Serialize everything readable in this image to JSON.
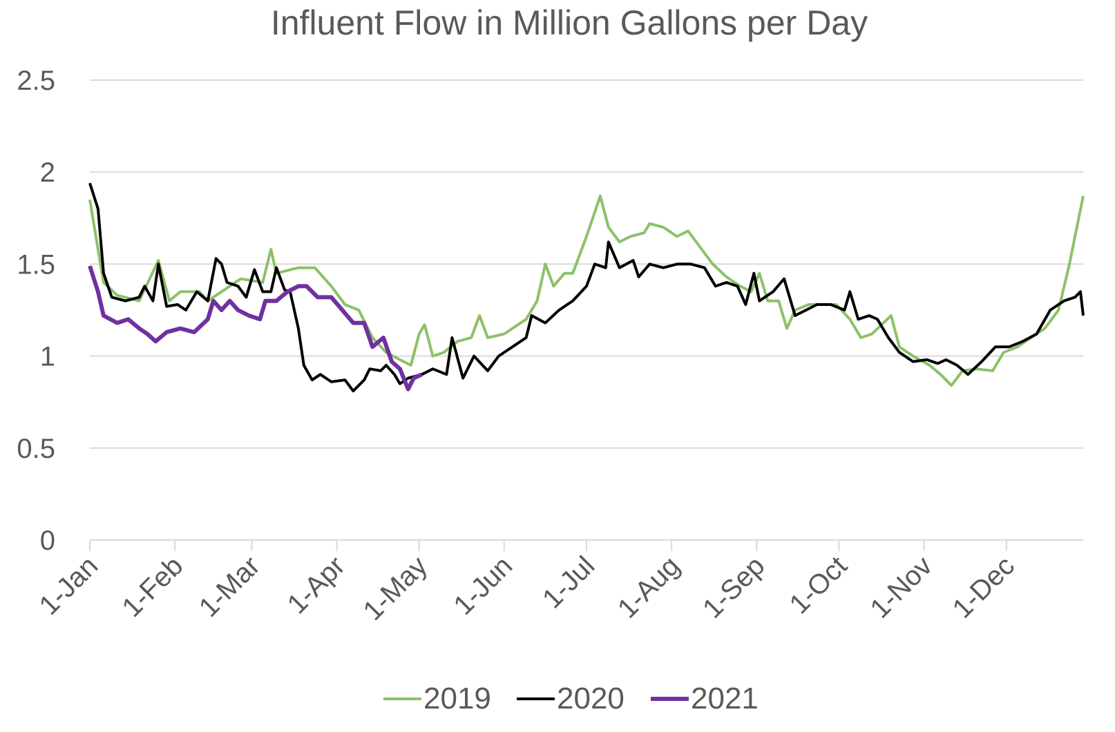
{
  "chart_data": {
    "type": "line",
    "title": "Influent Flow in Million Gallons per Day",
    "xlim": [
      0,
      362
    ],
    "ylim": [
      0,
      2.5
    ],
    "yticks": [
      0,
      0.5,
      1,
      1.5,
      2,
      2.5
    ],
    "grid": true,
    "legend": "bottom",
    "xticks": [
      {
        "value": 0,
        "label": "1-Jan"
      },
      {
        "value": 31,
        "label": "1-Feb"
      },
      {
        "value": 59,
        "label": "1-Mar"
      },
      {
        "value": 90,
        "label": "1-Apr"
      },
      {
        "value": 120,
        "label": "1-May"
      },
      {
        "value": 151,
        "label": "1-Jun"
      },
      {
        "value": 181,
        "label": "1-Jul"
      },
      {
        "value": 212,
        "label": "1-Aug"
      },
      {
        "value": 243,
        "label": "1-Sep"
      },
      {
        "value": 273,
        "label": "1-Oct"
      },
      {
        "value": 304,
        "label": "1-Nov"
      },
      {
        "value": 334,
        "label": "1-Dec"
      }
    ],
    "series": [
      {
        "name": "2019",
        "color": "#8cc16a",
        "x": [
          0,
          5,
          10,
          18,
          25,
          29,
          33,
          40,
          43,
          48,
          55,
          63,
          66,
          68,
          76,
          82,
          88,
          93,
          98,
          103,
          108,
          113,
          117,
          120,
          122,
          125,
          129,
          134,
          139,
          142,
          145,
          151,
          159,
          163,
          166,
          169,
          173,
          176,
          181,
          186,
          189,
          193,
          197,
          202,
          204,
          209,
          214,
          218,
          222,
          227,
          232,
          237,
          241,
          244,
          247,
          251,
          254,
          257,
          262,
          267,
          272,
          277,
          281,
          285,
          292,
          295,
          300,
          306,
          310,
          314,
          318,
          323,
          329,
          333,
          338,
          343,
          348,
          353,
          357,
          359,
          362
        ],
        "values": [
          1.85,
          1.4,
          1.33,
          1.3,
          1.52,
          1.3,
          1.35,
          1.35,
          1.3,
          1.35,
          1.42,
          1.4,
          1.58,
          1.45,
          1.48,
          1.48,
          1.38,
          1.28,
          1.25,
          1.1,
          1.02,
          0.98,
          0.95,
          1.12,
          1.17,
          1.0,
          1.02,
          1.08,
          1.1,
          1.22,
          1.1,
          1.12,
          1.2,
          1.3,
          1.5,
          1.38,
          1.45,
          1.45,
          1.65,
          1.87,
          1.7,
          1.62,
          1.65,
          1.67,
          1.72,
          1.7,
          1.65,
          1.68,
          1.6,
          1.5,
          1.43,
          1.38,
          1.35,
          1.45,
          1.3,
          1.3,
          1.15,
          1.25,
          1.28,
          1.28,
          1.28,
          1.2,
          1.1,
          1.12,
          1.22,
          1.05,
          1.0,
          0.95,
          0.9,
          0.84,
          0.92,
          0.93,
          0.92,
          1.02,
          1.05,
          1.1,
          1.15,
          1.25,
          1.5,
          1.65,
          1.87
        ]
      },
      {
        "name": "2020",
        "color": "#000000",
        "x": [
          0,
          3,
          5,
          8,
          13,
          18,
          20,
          23,
          25,
          28,
          32,
          35,
          39,
          43,
          46,
          48,
          50,
          54,
          57,
          60,
          63,
          66,
          68,
          71,
          73,
          76,
          78,
          81,
          84,
          88,
          93,
          96,
          100,
          102,
          106,
          108,
          111,
          113,
          116,
          121,
          125,
          130,
          132,
          136,
          140,
          145,
          149,
          154,
          159,
          161,
          166,
          171,
          176,
          181,
          184,
          188,
          189,
          193,
          198,
          200,
          204,
          209,
          214,
          219,
          224,
          228,
          232,
          236,
          239,
          242,
          244,
          249,
          253,
          257,
          261,
          265,
          270,
          275,
          277,
          280,
          284,
          287,
          291,
          295,
          300,
          305,
          309,
          312,
          316,
          320,
          325,
          330,
          335,
          340,
          345,
          350,
          355,
          359,
          361,
          362
        ],
        "values": [
          1.94,
          1.8,
          1.45,
          1.32,
          1.3,
          1.32,
          1.38,
          1.3,
          1.5,
          1.27,
          1.28,
          1.25,
          1.35,
          1.3,
          1.53,
          1.5,
          1.4,
          1.38,
          1.32,
          1.47,
          1.35,
          1.35,
          1.48,
          1.36,
          1.35,
          1.15,
          0.95,
          0.87,
          0.9,
          0.86,
          0.87,
          0.81,
          0.87,
          0.93,
          0.92,
          0.95,
          0.9,
          0.85,
          0.88,
          0.9,
          0.93,
          0.9,
          1.1,
          0.88,
          1.0,
          0.92,
          1.0,
          1.05,
          1.1,
          1.22,
          1.18,
          1.25,
          1.3,
          1.38,
          1.5,
          1.48,
          1.62,
          1.48,
          1.52,
          1.43,
          1.5,
          1.48,
          1.5,
          1.5,
          1.48,
          1.38,
          1.4,
          1.38,
          1.28,
          1.45,
          1.3,
          1.35,
          1.42,
          1.22,
          1.25,
          1.28,
          1.28,
          1.25,
          1.35,
          1.2,
          1.22,
          1.2,
          1.1,
          1.02,
          0.97,
          0.98,
          0.96,
          0.98,
          0.95,
          0.9,
          0.97,
          1.05,
          1.05,
          1.08,
          1.12,
          1.25,
          1.3,
          1.32,
          1.35,
          1.22
        ]
      },
      {
        "name": "2021",
        "color": "#7030a0",
        "x": [
          0,
          3,
          5,
          10,
          14,
          18,
          21,
          24,
          28,
          33,
          38,
          43,
          45,
          48,
          51,
          54,
          58,
          62,
          64,
          68,
          72,
          76,
          79,
          83,
          88,
          92,
          96,
          100,
          103,
          107,
          110,
          113,
          116,
          118,
          121
        ],
        "values": [
          1.49,
          1.35,
          1.22,
          1.18,
          1.2,
          1.15,
          1.12,
          1.08,
          1.13,
          1.15,
          1.13,
          1.2,
          1.3,
          1.25,
          1.3,
          1.25,
          1.22,
          1.2,
          1.3,
          1.3,
          1.35,
          1.38,
          1.38,
          1.32,
          1.32,
          1.25,
          1.18,
          1.18,
          1.05,
          1.1,
          0.97,
          0.93,
          0.82,
          0.88,
          0.9
        ]
      }
    ]
  }
}
